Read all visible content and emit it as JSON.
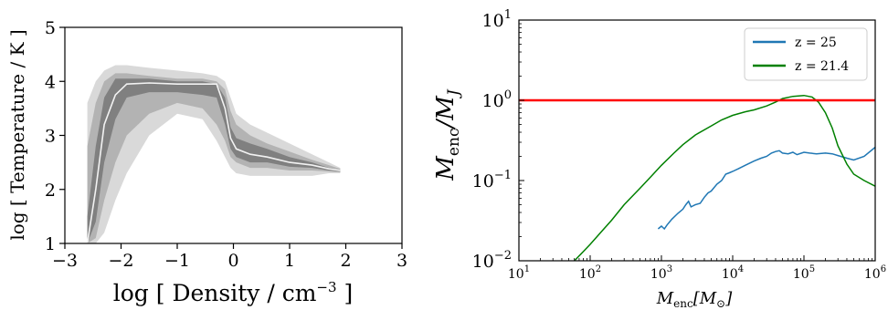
{
  "chart_data": [
    {
      "type": "area",
      "xlabel": "log [ Density / cm",
      "xlabel_sup": "−3",
      "xlabel_tail": " ]",
      "ylabel": "log [ Temperature / K ]",
      "xlim": [
        -3,
        3
      ],
      "ylim": [
        1,
        5
      ],
      "xticks": [
        "−3",
        "−2",
        "−1",
        "0",
        "1",
        "2",
        "3"
      ],
      "yticks": [
        "1",
        "2",
        "3",
        "4",
        "5"
      ],
      "median_color": "#f2f2f2",
      "band_colors": [
        "#d9d9d9",
        "#b3b3b3",
        "#808080"
      ],
      "x": [
        -2.6,
        -2.45,
        -2.3,
        -2.1,
        -1.9,
        -1.5,
        -1.0,
        -0.55,
        -0.3,
        -0.15,
        -0.05,
        0.05,
        0.3,
        0.6,
        1.0,
        1.4,
        1.7,
        1.9
      ],
      "median": [
        1.0,
        2.0,
        3.2,
        3.75,
        3.95,
        3.97,
        3.95,
        3.95,
        3.95,
        3.5,
        2.95,
        2.75,
        2.65,
        2.6,
        2.5,
        2.45,
        2.38,
        2.35
      ],
      "bands": [
        {
          "lower": [
            1.0,
            1.0,
            1.2,
            1.8,
            2.3,
            3.0,
            3.4,
            3.3,
            2.9,
            2.6,
            2.4,
            2.3,
            2.25,
            2.25,
            2.25,
            2.25,
            2.3,
            2.3
          ],
          "upper": [
            3.6,
            4.0,
            4.2,
            4.3,
            4.3,
            4.25,
            4.2,
            4.15,
            4.1,
            4.0,
            3.7,
            3.4,
            3.2,
            3.05,
            2.85,
            2.65,
            2.5,
            2.4
          ]
        },
        {
          "lower": [
            1.0,
            1.1,
            1.8,
            2.5,
            3.0,
            3.4,
            3.6,
            3.5,
            3.2,
            2.9,
            2.6,
            2.5,
            2.4,
            2.4,
            2.35,
            2.35,
            2.33,
            2.32
          ],
          "upper": [
            2.8,
            3.6,
            4.0,
            4.15,
            4.15,
            4.1,
            4.05,
            4.05,
            4.0,
            3.85,
            3.45,
            3.2,
            3.0,
            2.85,
            2.7,
            2.55,
            2.45,
            2.38
          ]
        },
        {
          "lower": [
            1.0,
            1.4,
            2.5,
            3.3,
            3.7,
            3.8,
            3.8,
            3.75,
            3.7,
            3.2,
            2.75,
            2.6,
            2.5,
            2.5,
            2.42,
            2.4,
            2.35,
            2.33
          ],
          "upper": [
            1.5,
            2.8,
            3.7,
            4.05,
            4.05,
            4.05,
            4.0,
            4.0,
            3.95,
            3.7,
            3.15,
            2.95,
            2.85,
            2.75,
            2.6,
            2.5,
            2.4,
            2.36
          ]
        }
      ]
    },
    {
      "type": "line",
      "xlabel": "M",
      "xlabel_sub": "enc",
      "xlabel_tail": "[M",
      "xlabel_sub2": "⊙",
      "xlabel_end": "]",
      "ylabel": "M",
      "ylabel_sub": "enc",
      "ylabel_tail": "/M",
      "ylabel_sub2": "J",
      "xscale": "log",
      "yscale": "log",
      "xlim": [
        10,
        1000000
      ],
      "ylim": [
        0.01,
        10
      ],
      "xticks": [
        {
          "base": "10",
          "exp": "1"
        },
        {
          "base": "10",
          "exp": "2"
        },
        {
          "base": "10",
          "exp": "3"
        },
        {
          "base": "10",
          "exp": "4"
        },
        {
          "base": "10",
          "exp": "5"
        },
        {
          "base": "10",
          "exp": "6"
        }
      ],
      "yticks": [
        {
          "base": "10",
          "exp": "−2"
        },
        {
          "base": "10",
          "exp": "−1"
        },
        {
          "base": "10",
          "exp": "0"
        },
        {
          "base": "10",
          "exp": "1"
        }
      ],
      "hline": {
        "y": 1,
        "color": "#ff0000"
      },
      "legend": "top-right",
      "series": [
        {
          "name": "z = 25",
          "color": "#1f77b4",
          "x": [
            900,
            1000,
            1100,
            1200,
            1400,
            1700,
            2000,
            2200,
            2400,
            2600,
            3000,
            3500,
            4000,
            4500,
            5000,
            6000,
            7000,
            8000,
            9000,
            10000,
            12000,
            15000,
            20000,
            25000,
            30000,
            35000,
            40000,
            45000,
            50000,
            60000,
            70000,
            80000,
            100000,
            120000,
            150000,
            200000,
            250000,
            300000,
            400000,
            500000,
            700000,
            1000000
          ],
          "y": [
            0.025,
            0.027,
            0.025,
            0.028,
            0.033,
            0.039,
            0.044,
            0.05,
            0.055,
            0.047,
            0.05,
            0.052,
            0.062,
            0.07,
            0.074,
            0.09,
            0.1,
            0.12,
            0.125,
            0.13,
            0.14,
            0.155,
            0.175,
            0.19,
            0.2,
            0.22,
            0.23,
            0.235,
            0.22,
            0.215,
            0.225,
            0.21,
            0.225,
            0.22,
            0.215,
            0.22,
            0.215,
            0.205,
            0.19,
            0.18,
            0.2,
            0.26
          ]
        },
        {
          "name": "z = 21.4",
          "color": "#008000",
          "x": [
            60,
            80,
            100,
            150,
            200,
            300,
            500,
            700,
            1000,
            1500,
            2000,
            3000,
            5000,
            7000,
            10000,
            15000,
            20000,
            30000,
            40000,
            50000,
            70000,
            100000,
            130000,
            160000,
            200000,
            250000,
            300000,
            400000,
            500000,
            700000,
            1000000
          ],
          "y": [
            0.01,
            0.013,
            0.016,
            0.024,
            0.032,
            0.05,
            0.08,
            0.11,
            0.155,
            0.22,
            0.28,
            0.37,
            0.48,
            0.57,
            0.65,
            0.72,
            0.76,
            0.85,
            0.95,
            1.05,
            1.12,
            1.15,
            1.1,
            0.95,
            0.7,
            0.45,
            0.27,
            0.16,
            0.12,
            0.1,
            0.085
          ]
        }
      ]
    }
  ]
}
